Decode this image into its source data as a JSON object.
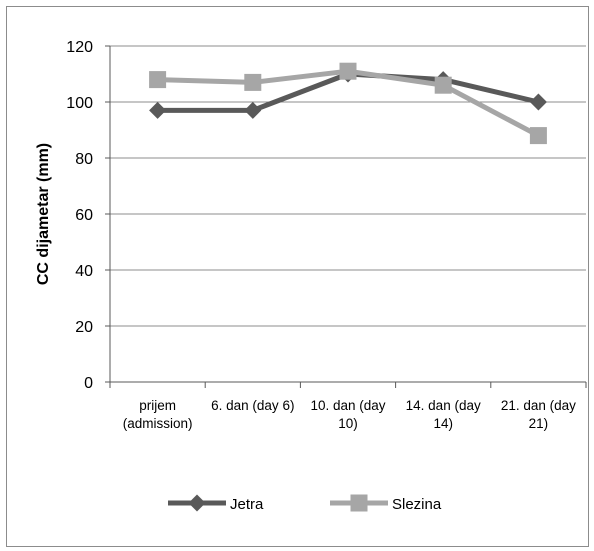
{
  "chart_data": {
    "type": "line",
    "title": "",
    "xlabel": "",
    "ylabel": "CC dijametar (mm)",
    "ylim": [
      0,
      120
    ],
    "yticks": [
      0,
      20,
      40,
      60,
      80,
      100,
      120
    ],
    "grid": true,
    "legend_position": "bottom",
    "categories": [
      [
        "prijem",
        "(admission)"
      ],
      [
        "6. dan (day 6)"
      ],
      [
        "10. dan (day",
        "10)"
      ],
      [
        "14. dan (day",
        "14)"
      ],
      [
        "21. dan (day",
        "21)"
      ]
    ],
    "series": [
      {
        "name": "Jetra",
        "color": "#595959",
        "marker": "diamond",
        "values": [
          97,
          97,
          110,
          108,
          100
        ]
      },
      {
        "name": "Slezina",
        "color": "#a6a6a6",
        "marker": "square",
        "values": [
          108,
          107,
          111,
          106,
          88
        ]
      }
    ]
  }
}
